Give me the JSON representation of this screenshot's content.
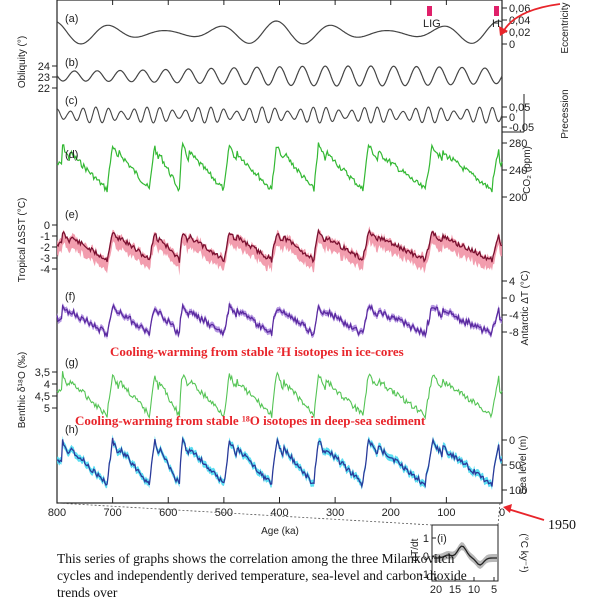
{
  "caption": "This series of graphs shows the correlation among the three Milankovitch cycles and independently derived temperature, sea-level and carbon dioxide trends over",
  "annotations": {
    "deuterium": "Cooling-warming from stable ²H isotopes in ice-cores",
    "oxygen": "Cooling-warming from stable ¹⁸O isotopes in deep-sea sediment",
    "year_1950": "1950",
    "lig": "LIG",
    "h": "H"
  },
  "colors": {
    "orbital": "#444444",
    "co2": "#33b833",
    "sst_line": "#7a1030",
    "sst_band": "#f08ca0",
    "antarctic_line": "#5a2aa0",
    "antarctic_band": "#a884dc",
    "benthic": "#55c455",
    "sealevel_line": "#2a3a9a",
    "sealevel_band": "#40d8f0",
    "arrow": "#e8252b",
    "marker": "#e0206a"
  },
  "chart_data": {
    "type": "line",
    "x_axis": {
      "title": "Age (ka)",
      "range": [
        800,
        0
      ],
      "ticks": [
        "800",
        "700",
        "600",
        "500",
        "400",
        "300",
        "200",
        "100",
        "0"
      ]
    },
    "panels": [
      {
        "label": "(a)",
        "title": "Eccentricity",
        "ticks": [
          "0,06",
          "0,04",
          "0,02",
          "0"
        ]
      },
      {
        "label": "(b)",
        "title": "Obliquity (°)",
        "ticks": [
          "24",
          "23",
          "22"
        ]
      },
      {
        "label": "(c)",
        "title": "Precession",
        "ticks": [
          "0,05",
          "0",
          "-0,05"
        ]
      },
      {
        "label": "(d)",
        "title": "CO₂ (ppm)",
        "ticks": [
          "280",
          "240",
          "200"
        ]
      },
      {
        "label": "(e)",
        "title": "Tropical ΔSST (°C)",
        "ticks": [
          "0",
          "-1",
          "-2",
          "-3",
          "-4"
        ]
      },
      {
        "label": "(f)",
        "title": "Antarctic ΔT (°C)",
        "ticks": [
          "4",
          "0",
          "-4",
          "-8"
        ]
      },
      {
        "label": "(g)",
        "title": "Benthic δ¹⁸O (‰)",
        "ticks": [
          "3,5",
          "4",
          "4,5",
          "5"
        ]
      },
      {
        "label": "(h)",
        "title": "Sea level (m)",
        "ticks": [
          "0",
          "50",
          "100"
        ]
      }
    ],
    "inset": {
      "label": "(i)",
      "ylabel": "dT/dt",
      "ytitle": "(°C ky⁻¹)",
      "xticks": [
        "20",
        "15",
        "10",
        "5"
      ],
      "yticks": [
        "1",
        "0",
        "-1"
      ]
    }
  }
}
